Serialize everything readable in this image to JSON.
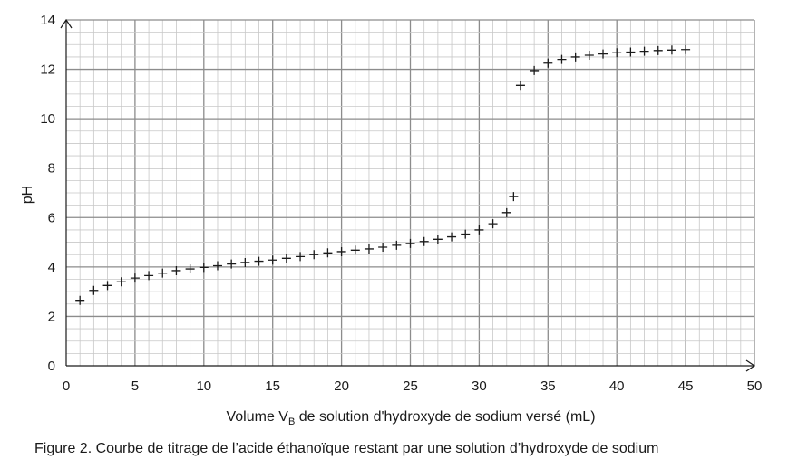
{
  "chart_data": {
    "type": "scatter",
    "marker": "plus",
    "xlabel": {
      "main": "Volume V",
      "sub": "B",
      "rest": " de solution d'hydroxyde de sodium versé (mL)"
    },
    "ylabel": "pH",
    "xlim": [
      0,
      50
    ],
    "ylim": [
      0,
      14
    ],
    "xticks": [
      "0",
      "5",
      "10",
      "15",
      "20",
      "25",
      "30",
      "35",
      "40",
      "45",
      "50"
    ],
    "yticks": [
      "0",
      "2",
      "4",
      "6",
      "8",
      "10",
      "12",
      "14"
    ],
    "grid": true,
    "points": [
      [
        1,
        2.65
      ],
      [
        2,
        3.05
      ],
      [
        3,
        3.25
      ],
      [
        4,
        3.4
      ],
      [
        5,
        3.55
      ],
      [
        6,
        3.65
      ],
      [
        7,
        3.75
      ],
      [
        8,
        3.85
      ],
      [
        9,
        3.92
      ],
      [
        10,
        3.98
      ],
      [
        11,
        4.05
      ],
      [
        12,
        4.12
      ],
      [
        13,
        4.18
      ],
      [
        14,
        4.23
      ],
      [
        15,
        4.28
      ],
      [
        16,
        4.35
      ],
      [
        17,
        4.42
      ],
      [
        18,
        4.5
      ],
      [
        19,
        4.57
      ],
      [
        20,
        4.62
      ],
      [
        21,
        4.68
      ],
      [
        22,
        4.73
      ],
      [
        23,
        4.8
      ],
      [
        24,
        4.88
      ],
      [
        25,
        4.95
      ],
      [
        26,
        5.03
      ],
      [
        27,
        5.12
      ],
      [
        28,
        5.22
      ],
      [
        29,
        5.33
      ],
      [
        30,
        5.5
      ],
      [
        31,
        5.75
      ],
      [
        32,
        6.2
      ],
      [
        32.5,
        6.85
      ],
      [
        33,
        11.35
      ],
      [
        34,
        11.95
      ],
      [
        35,
        12.25
      ],
      [
        36,
        12.4
      ],
      [
        37,
        12.5
      ],
      [
        38,
        12.57
      ],
      [
        39,
        12.62
      ],
      [
        40,
        12.67
      ],
      [
        41,
        12.7
      ],
      [
        42,
        12.73
      ],
      [
        43,
        12.76
      ],
      [
        44,
        12.78
      ],
      [
        45,
        12.8
      ]
    ],
    "colors": {
      "marker": "#1a1a1a",
      "grid_major": "#8c8c8c",
      "grid_minor": "#c8c8c8"
    }
  },
  "caption": "Figure 2. Courbe de titrage de l’acide éthanoïque restant par une solution d’hydroxyde de sodium"
}
